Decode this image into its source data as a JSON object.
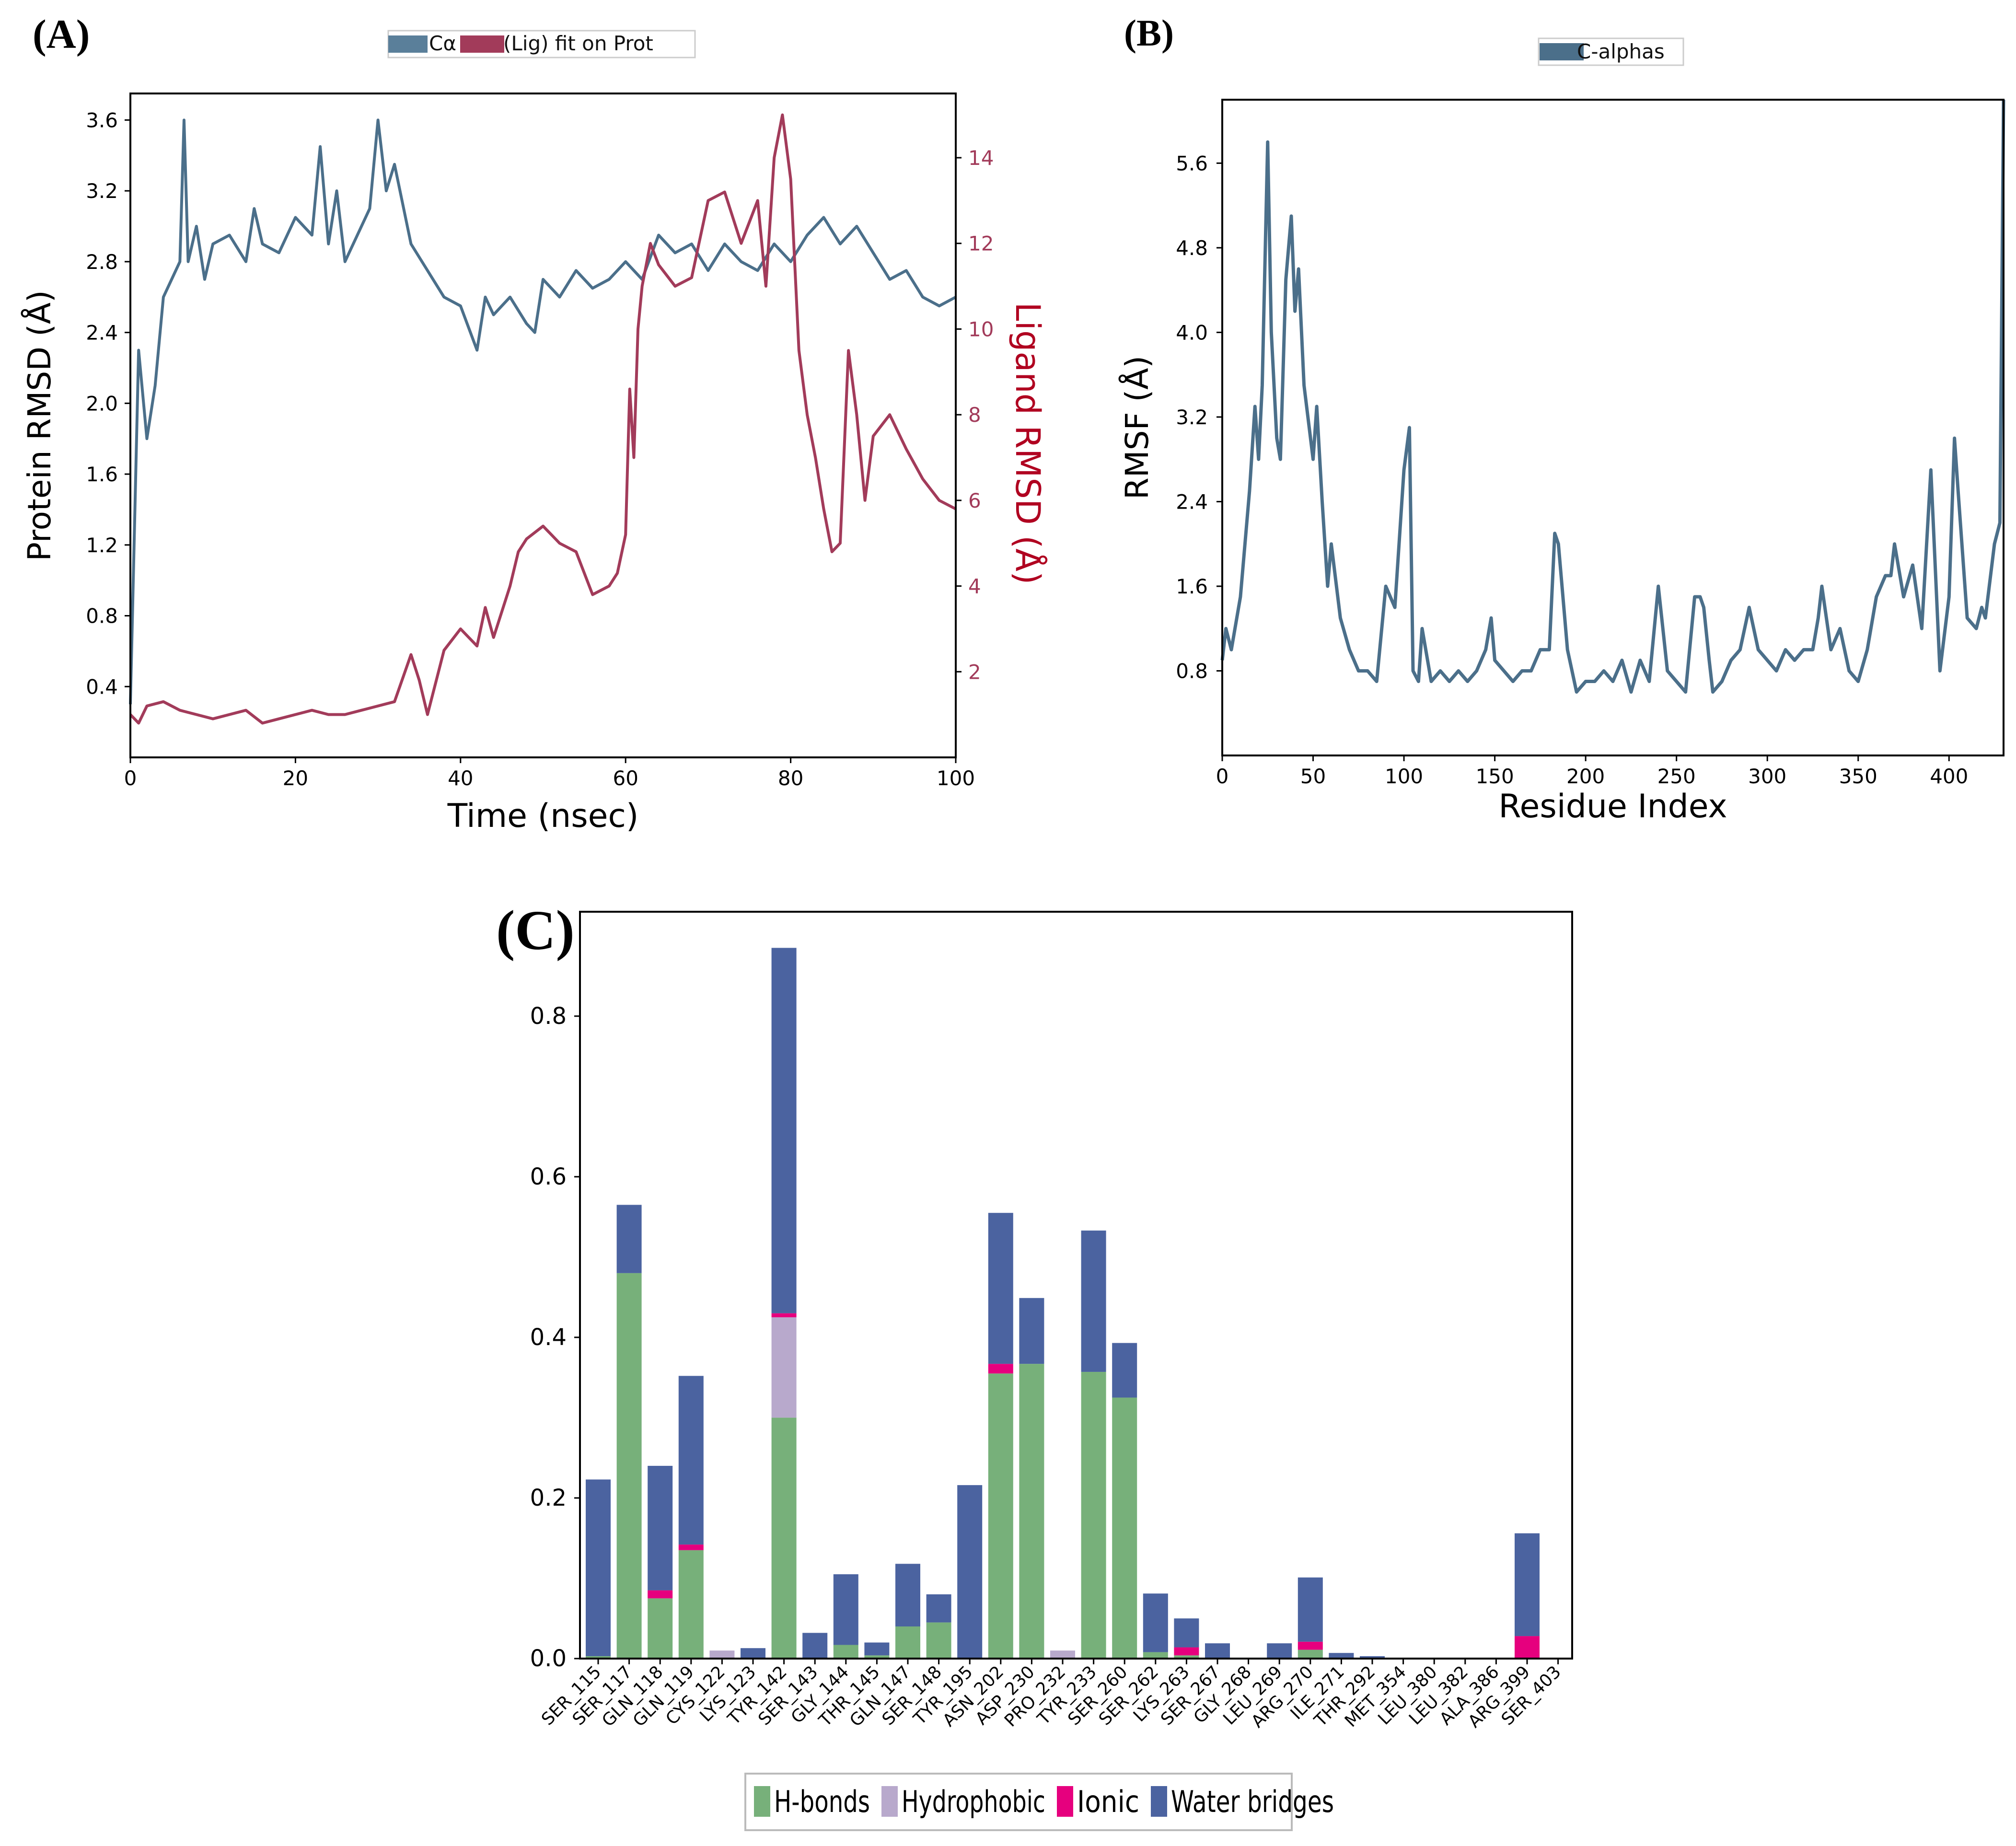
{
  "panels": {
    "a": {
      "letter": "(A)"
    },
    "b": {
      "letter": "(B)"
    },
    "c": {
      "letter": "(C)"
    }
  },
  "colors": {
    "protein": "#4b6f8a",
    "ligand": "#a23b5a",
    "ligand_label": "#b00020",
    "rmsf": "#4b6f8a",
    "hbonds": "#77b07a",
    "hydrophobic": "#b8a9cc",
    "ionic": "#e6007e",
    "water": "#4b63a0"
  },
  "chart_data": [
    {
      "id": "rmsd",
      "type": "line",
      "legend": [
        {
          "label": "Cα",
          "color": "#4b6f8a"
        },
        {
          "label": "(Lig) fit on Prot",
          "color": "#a23b5a"
        }
      ],
      "xlabel": "Time (nsec)",
      "ylabel": "Protein RMSD (Å)",
      "y2label": "Ligand RMSD (Å)",
      "xlim": [
        0,
        100
      ],
      "ylim": [
        0.0,
        3.75
      ],
      "y2lim": [
        0.0,
        15.5
      ],
      "xticks": [
        0,
        20,
        40,
        60,
        80,
        100
      ],
      "yticks": [
        0.4,
        0.8,
        1.2,
        1.6,
        2.0,
        2.4,
        2.8,
        3.2,
        3.6
      ],
      "y2ticks": [
        2,
        4,
        6,
        8,
        10,
        12,
        14
      ],
      "series": [
        {
          "name": "Cα",
          "axis": "left",
          "x": [
            0,
            1,
            2,
            3,
            4,
            5,
            6,
            6.5,
            7,
            8,
            9,
            10,
            12,
            14,
            15,
            16,
            18,
            20,
            22,
            23,
            24,
            25,
            26,
            28,
            29,
            30,
            31,
            32,
            34,
            36,
            38,
            40,
            42,
            43,
            44,
            46,
            48,
            49,
            50,
            52,
            54,
            56,
            58,
            60,
            62,
            64,
            66,
            68,
            70,
            72,
            74,
            76,
            78,
            80,
            82,
            84,
            86,
            88,
            90,
            92,
            94,
            96,
            98,
            100
          ],
          "y": [
            0.3,
            2.3,
            1.8,
            2.1,
            2.6,
            2.7,
            2.8,
            3.6,
            2.8,
            3.0,
            2.7,
            2.9,
            2.95,
            2.8,
            3.1,
            2.9,
            2.85,
            3.05,
            2.95,
            3.45,
            2.9,
            3.2,
            2.8,
            3.0,
            3.1,
            3.6,
            3.2,
            3.35,
            2.9,
            2.75,
            2.6,
            2.55,
            2.3,
            2.6,
            2.5,
            2.6,
            2.45,
            2.4,
            2.7,
            2.6,
            2.75,
            2.65,
            2.7,
            2.8,
            2.7,
            2.95,
            2.85,
            2.9,
            2.75,
            2.9,
            2.8,
            2.75,
            2.9,
            2.8,
            2.95,
            3.05,
            2.9,
            3.0,
            2.85,
            2.7,
            2.75,
            2.6,
            2.55,
            2.6
          ]
        },
        {
          "name": "(Lig) fit on Prot",
          "axis": "right",
          "x": [
            0,
            1,
            2,
            4,
            6,
            8,
            10,
            12,
            14,
            16,
            18,
            20,
            22,
            24,
            26,
            28,
            30,
            32,
            34,
            35,
            36,
            38,
            40,
            42,
            43,
            44,
            46,
            47,
            48,
            50,
            52,
            54,
            56,
            58,
            59,
            60,
            60.5,
            61,
            61.5,
            62,
            63,
            64,
            66,
            68,
            70,
            72,
            74,
            76,
            77,
            78,
            79,
            80,
            81,
            82,
            83,
            84,
            85,
            86,
            87,
            88,
            89,
            90,
            92,
            94,
            96,
            98,
            100
          ],
          "y": [
            1.0,
            0.8,
            1.2,
            1.3,
            1.1,
            1.0,
            0.9,
            1.0,
            1.1,
            0.8,
            0.9,
            1.0,
            1.1,
            1.0,
            1.0,
            1.1,
            1.2,
            1.3,
            2.4,
            1.8,
            1.0,
            2.5,
            3.0,
            2.6,
            3.5,
            2.8,
            4.0,
            4.8,
            5.1,
            5.4,
            5.0,
            4.8,
            3.8,
            4.0,
            4.3,
            5.2,
            8.6,
            7.0,
            10.0,
            11.0,
            12.0,
            11.5,
            11.0,
            11.2,
            13.0,
            13.2,
            12.0,
            13.0,
            11.0,
            14.0,
            15.0,
            13.5,
            9.5,
            8.0,
            7.0,
            5.8,
            4.8,
            5.0,
            9.5,
            8.0,
            6.0,
            7.5,
            8.0,
            7.2,
            6.5,
            6.0,
            5.8
          ]
        }
      ]
    },
    {
      "id": "rmsf",
      "type": "line",
      "legend": [
        {
          "label": "C-alphas",
          "color": "#4b6f8a"
        }
      ],
      "xlabel": "Residue Index",
      "ylabel": "RMSF (Å)",
      "xlim": [
        0,
        430
      ],
      "ylim": [
        0.0,
        6.2
      ],
      "xticks": [
        0,
        50,
        100,
        150,
        200,
        250,
        300,
        350,
        400
      ],
      "yticks": [
        0.8,
        1.6,
        2.4,
        3.2,
        4.0,
        4.8,
        5.6
      ],
      "series": [
        {
          "name": "C-alphas",
          "x": [
            0,
            2,
            5,
            10,
            15,
            18,
            20,
            22,
            25,
            27,
            30,
            32,
            35,
            38,
            40,
            42,
            45,
            50,
            52,
            55,
            58,
            60,
            65,
            70,
            75,
            80,
            85,
            90,
            95,
            100,
            103,
            105,
            108,
            110,
            115,
            120,
            125,
            130,
            135,
            140,
            145,
            148,
            150,
            155,
            160,
            165,
            170,
            175,
            180,
            183,
            185,
            190,
            195,
            200,
            205,
            210,
            215,
            220,
            225,
            230,
            235,
            240,
            245,
            250,
            255,
            260,
            263,
            265,
            268,
            270,
            275,
            280,
            285,
            290,
            295,
            300,
            305,
            310,
            315,
            320,
            325,
            328,
            330,
            335,
            340,
            345,
            350,
            355,
            360,
            365,
            368,
            370,
            375,
            380,
            385,
            390,
            395,
            400,
            403,
            405,
            410,
            415,
            418,
            420,
            425,
            428,
            430
          ],
          "y": [
            0.9,
            1.2,
            1.0,
            1.5,
            2.5,
            3.3,
            2.8,
            3.5,
            5.8,
            4.0,
            3.0,
            2.8,
            4.5,
            5.1,
            4.2,
            4.6,
            3.5,
            2.8,
            3.3,
            2.4,
            1.6,
            2.0,
            1.3,
            1.0,
            0.8,
            0.8,
            0.7,
            1.6,
            1.4,
            2.7,
            3.1,
            0.8,
            0.7,
            1.2,
            0.7,
            0.8,
            0.7,
            0.8,
            0.7,
            0.8,
            1.0,
            1.3,
            0.9,
            0.8,
            0.7,
            0.8,
            0.8,
            1.0,
            1.0,
            2.1,
            2.0,
            1.0,
            0.6,
            0.7,
            0.7,
            0.8,
            0.7,
            0.9,
            0.6,
            0.9,
            0.7,
            1.6,
            0.8,
            0.7,
            0.6,
            1.5,
            1.5,
            1.4,
            0.9,
            0.6,
            0.7,
            0.9,
            1.0,
            1.4,
            1.0,
            0.9,
            0.8,
            1.0,
            0.9,
            1.0,
            1.0,
            1.3,
            1.6,
            1.0,
            1.2,
            0.8,
            0.7,
            1.0,
            1.5,
            1.7,
            1.7,
            2.0,
            1.5,
            1.8,
            1.2,
            2.7,
            0.8,
            1.5,
            3.0,
            2.5,
            1.3,
            1.2,
            1.4,
            1.3,
            2.0,
            2.2,
            6.2
          ]
        }
      ]
    },
    {
      "id": "contacts",
      "type": "bar",
      "stacked": true,
      "ylim": [
        0,
        0.93
      ],
      "yticks": [
        0.0,
        0.2,
        0.4,
        0.6,
        0.8
      ],
      "categories": [
        "SER_115",
        "SER_117",
        "GLN_118",
        "GLN_119",
        "CYS_122",
        "LYS_123",
        "TYR_142",
        "SER_143",
        "GLY_144",
        "THR_145",
        "GLN_147",
        "SER_148",
        "TYR_195",
        "ASN_202",
        "ASP_230",
        "PRO_232",
        "TYR_233",
        "SER_260",
        "SER_262",
        "LYS_263",
        "SER_267",
        "GLY_268",
        "LEU_269",
        "ARG_270",
        "ILE_271",
        "THR_292",
        "MET_354",
        "LEU_380",
        "LEU_382",
        "ALA_386",
        "ARG_399",
        "SER_403"
      ],
      "series": [
        {
          "name": "H-bonds",
          "values": [
            0.003,
            0.48,
            0.075,
            0.135,
            0,
            0,
            0.3,
            0,
            0.017,
            0.004,
            0.04,
            0.045,
            0,
            0.355,
            0.367,
            0,
            0.357,
            0.325,
            0.008,
            0.004,
            0,
            0,
            0,
            0.011,
            0,
            0,
            0,
            0,
            0,
            0,
            0,
            0
          ]
        },
        {
          "name": "Hydrophobic",
          "values": [
            0,
            0,
            0,
            0,
            0.01,
            0,
            0.125,
            0,
            0,
            0,
            0,
            0,
            0,
            0,
            0,
            0.01,
            0,
            0,
            0,
            0,
            0,
            0,
            0,
            0,
            0,
            0,
            0,
            0,
            0,
            0,
            0,
            0
          ]
        },
        {
          "name": "Ionic",
          "values": [
            0,
            0,
            0.01,
            0.007,
            0,
            0,
            0.005,
            0,
            0,
            0,
            0,
            0,
            0,
            0.012,
            0,
            0,
            0,
            0,
            0,
            0.01,
            0,
            0,
            0,
            0.01,
            0,
            0,
            0,
            0,
            0,
            0,
            0.028,
            0
          ]
        },
        {
          "name": "Water bridges",
          "values": [
            0.22,
            0.085,
            0.155,
            0.21,
            0,
            0.013,
            0.455,
            0.032,
            0.088,
            0.016,
            0.078,
            0.035,
            0.216,
            0.188,
            0.082,
            0,
            0.176,
            0.068,
            0.073,
            0.036,
            0.019,
            0,
            0.019,
            0.08,
            0.007,
            0.003,
            0.001,
            0.001,
            0.001,
            0.001,
            0.128,
            0.001
          ]
        }
      ],
      "legend": [
        {
          "label": "H-bonds",
          "color": "#77b07a"
        },
        {
          "label": "Hydrophobic",
          "color": "#b8a9cc"
        },
        {
          "label": "Ionic",
          "color": "#e6007e"
        },
        {
          "label": "Water bridges",
          "color": "#4b63a0"
        }
      ]
    }
  ]
}
